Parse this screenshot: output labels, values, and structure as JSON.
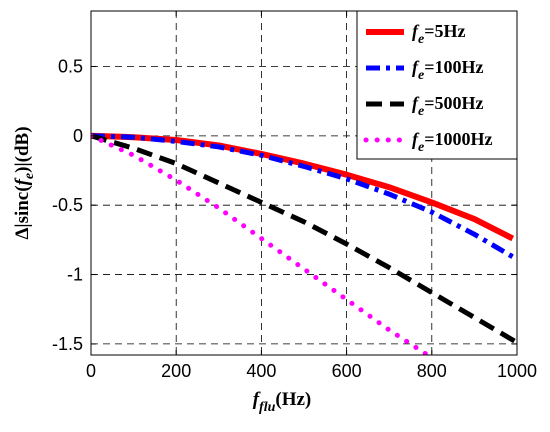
{
  "chart_data": {
    "type": "line",
    "xlabel": {
      "main": "f",
      "sub": "flu",
      "unit": "(Hz)"
    },
    "ylabel": {
      "pre": "Δ|sinc(",
      "main": "f",
      "sub": "e",
      "post": ")|(dB)"
    },
    "xlim": [
      0,
      1000
    ],
    "ylim": [
      -1.58,
      0.9
    ],
    "xticks": [
      0,
      200,
      400,
      600,
      800,
      1000
    ],
    "xtick_labels": [
      "0",
      "200",
      "400",
      "600",
      "800",
      "1000"
    ],
    "yticks": [
      0.5,
      0,
      -0.5,
      -1,
      -1.5
    ],
    "ytick_labels": [
      "0.5",
      "0",
      "-0.5",
      "-1",
      "-1.5"
    ],
    "grid": true,
    "legend_position": "top-right",
    "series": [
      {
        "name": "fe=5Hz",
        "legend": {
          "main": "f",
          "sub": "e",
          "rest": "=5Hz"
        },
        "color": "#ff0000",
        "style": "solid",
        "x": [
          0,
          100,
          200,
          300,
          400,
          500,
          600,
          700,
          800,
          900,
          990
        ],
        "y": [
          0,
          -0.01,
          -0.03,
          -0.07,
          -0.13,
          -0.2,
          -0.28,
          -0.37,
          -0.48,
          -0.6,
          -0.74
        ]
      },
      {
        "name": "fe=100Hz",
        "legend": {
          "main": "f",
          "sub": "e",
          "rest": "=100Hz"
        },
        "color": "#0000ff",
        "style": "dashdot",
        "x": [
          0,
          100,
          200,
          300,
          400,
          500,
          600,
          700,
          800,
          900,
          1000
        ],
        "y": [
          0,
          -0.01,
          -0.04,
          -0.08,
          -0.14,
          -0.22,
          -0.31,
          -0.42,
          -0.55,
          -0.71,
          -0.89
        ]
      },
      {
        "name": "fe=500Hz",
        "legend": {
          "main": "f",
          "sub": "e",
          "rest": "=500Hz"
        },
        "color": "#000000",
        "style": "dashed",
        "x": [
          0,
          100,
          200,
          300,
          400,
          500,
          600,
          700,
          800,
          900,
          1000
        ],
        "y": [
          0,
          -0.09,
          -0.2,
          -0.34,
          -0.48,
          -0.62,
          -0.78,
          -0.95,
          -1.13,
          -1.31,
          -1.49
        ]
      },
      {
        "name": "fe=1000Hz",
        "legend": {
          "main": "f",
          "sub": "e",
          "rest": "=1000Hz"
        },
        "color": "#ff00ff",
        "style": "dotted",
        "x": [
          0,
          100,
          200,
          300,
          400,
          500,
          600,
          700,
          800
        ],
        "y": [
          0,
          -0.14,
          -0.32,
          -0.52,
          -0.74,
          -0.96,
          -1.18,
          -1.4,
          -1.6
        ]
      }
    ]
  }
}
